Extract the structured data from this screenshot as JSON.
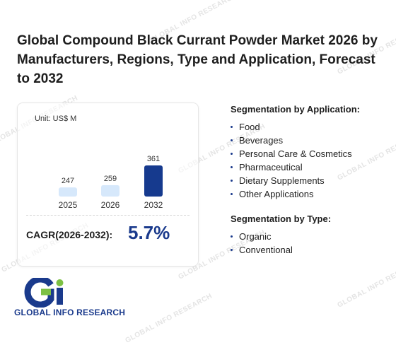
{
  "title": "Global Compound Black Currant Powder Market 2026 by Manufacturers, Regions, Type and Application, Forecast to 2032",
  "chart_data": {
    "type": "bar",
    "unit_label": "Unit: US$ M",
    "categories": [
      "2025",
      "2026",
      "2032"
    ],
    "values": [
      247,
      259,
      361
    ],
    "value_labels": [
      "247",
      "259",
      "361"
    ],
    "colors": [
      "#d6e8fb",
      "#d6e8fb",
      "#163a8e"
    ]
  },
  "cagr": {
    "label": "CAGR(2026-2032):",
    "value": "5.7%"
  },
  "segmentation_application": {
    "heading": "Segmentation by Application:",
    "items": [
      "Food",
      "Beverages",
      "Personal Care & Cosmetics",
      "Pharmaceutical",
      "Dietary Supplements",
      "Other Applications"
    ]
  },
  "segmentation_type": {
    "heading": "Segmentation by Type:",
    "items": [
      "Organic",
      "Conventional"
    ]
  },
  "logo": {
    "text": "GLOBAL INFO RESEARCH",
    "watermark_text": "GLOBAL INFO RESEARCH"
  }
}
